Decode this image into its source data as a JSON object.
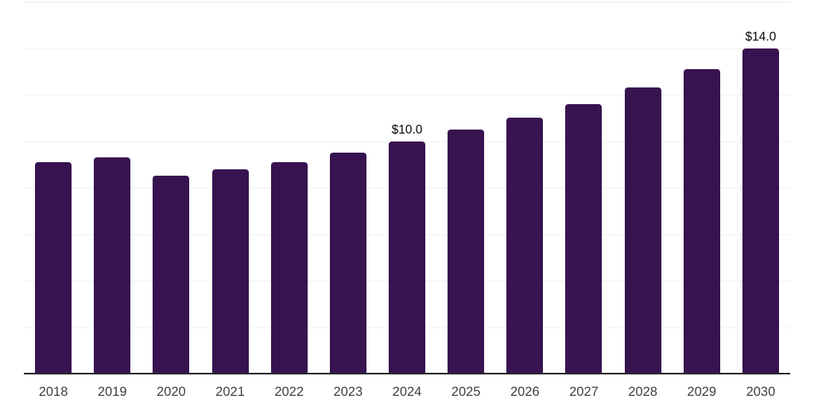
{
  "chart_data": {
    "type": "bar",
    "title": "",
    "xlabel": "",
    "ylabel": "",
    "categories": [
      "2018",
      "2019",
      "2020",
      "2021",
      "2022",
      "2023",
      "2024",
      "2025",
      "2026",
      "2027",
      "2028",
      "2029",
      "2030"
    ],
    "values": [
      9.1,
      9.3,
      8.5,
      8.8,
      9.1,
      9.5,
      10.0,
      10.5,
      11.0,
      11.6,
      12.3,
      13.1,
      14.0
    ],
    "data_labels": [
      {
        "category": "2024",
        "text": "$10.0"
      },
      {
        "category": "2030",
        "text": "$14.0"
      }
    ],
    "ylim": [
      0,
      16
    ],
    "grid": {
      "show": true,
      "step": 2,
      "y_tick_labels_visible": false
    },
    "legend_position": "none",
    "colors": {
      "bar": "#371350",
      "axis_line": "#262626",
      "gridline": "#f1f1f1",
      "top_gridline": "#e8e8e8",
      "tick_label": "#3f3f3f",
      "data_label": "#050505",
      "background": "#ffffff"
    }
  }
}
